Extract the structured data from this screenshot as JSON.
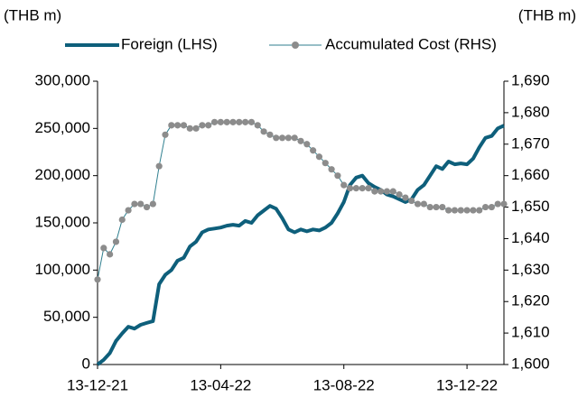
{
  "chart_data": {
    "type": "line",
    "y_label": "(THB m)",
    "y2_label": "(THB m)",
    "categories": [
      "13-12-21",
      null,
      null,
      null,
      null,
      null,
      null,
      null,
      null,
      null,
      null,
      null,
      null,
      null,
      null,
      null,
      null,
      null,
      null,
      null,
      "13-04-22",
      null,
      null,
      null,
      null,
      null,
      null,
      null,
      null,
      null,
      null,
      null,
      null,
      null,
      null,
      null,
      null,
      null,
      null,
      null,
      "13-08-22",
      null,
      null,
      null,
      null,
      null,
      null,
      null,
      null,
      null,
      null,
      null,
      null,
      null,
      null,
      null,
      null,
      null,
      null,
      null,
      "13-12-22",
      null,
      null,
      null,
      null,
      null,
      null
    ],
    "series": [
      {
        "name": "Foreign (LHS)",
        "color": "#0e5f7b",
        "axis": "y",
        "values": [
          0,
          5000,
          12000,
          25000,
          33000,
          40000,
          38000,
          42000,
          44000,
          46000,
          85000,
          95000,
          100000,
          110000,
          113000,
          125000,
          130000,
          140000,
          143000,
          144000,
          145000,
          147000,
          148000,
          147000,
          152000,
          150000,
          158000,
          163000,
          168000,
          165000,
          155000,
          143000,
          140000,
          143000,
          141000,
          143000,
          142000,
          145000,
          150000,
          160000,
          172000,
          190000,
          198000,
          200000,
          192000,
          188000,
          185000,
          180000,
          178000,
          175000,
          172000,
          175000,
          185000,
          190000,
          200000,
          210000,
          207000,
          215000,
          212000,
          213000,
          212000,
          218000,
          230000,
          240000,
          242000,
          250000,
          253000
        ]
      },
      {
        "name": "Accumulated Cost (RHS)",
        "color": "#8c8c8c",
        "axis": "y2",
        "values": [
          1627,
          1637,
          1635,
          1639,
          1646,
          1649,
          1651,
          1651,
          1650,
          1651,
          1663,
          1673,
          1676,
          1676,
          1676,
          1675,
          1675,
          1676,
          1676,
          1677,
          1677,
          1677,
          1677,
          1677,
          1677,
          1677,
          1676,
          1674,
          1673,
          1672,
          1672,
          1672,
          1672,
          1671,
          1670,
          1668,
          1666,
          1664,
          1662,
          1660,
          1657,
          1656,
          1656,
          1656,
          1656,
          1655,
          1655,
          1655,
          1655,
          1654,
          1653,
          1652,
          1651,
          1651,
          1650,
          1650,
          1650,
          1649,
          1649,
          1649,
          1649,
          1649,
          1649,
          1650,
          1650,
          1651,
          1651
        ]
      }
    ],
    "ylim": [
      0,
      300000
    ],
    "yticks": [
      0,
      {
        "value": 50000,
        "label": "50,000"
      },
      {
        "value": 100000,
        "label": "100,000"
      },
      {
        "value": 150000,
        "label": "150,000"
      },
      {
        "value": 200000,
        "label": "200,000"
      },
      {
        "value": 250000,
        "label": "250,000"
      },
      {
        "value": 300000,
        "label": "300,000"
      }
    ],
    "y2lim": [
      1600,
      1690
    ],
    "y2ticks": [
      {
        "value": 1600,
        "label": "1,600"
      },
      {
        "value": 1610,
        "label": "1,610"
      },
      {
        "value": 1620,
        "label": "1,620"
      },
      {
        "value": 1630,
        "label": "1,630"
      },
      {
        "value": 1640,
        "label": "1,640"
      },
      {
        "value": 1650,
        "label": "1,650"
      },
      {
        "value": 1660,
        "label": "1,660"
      },
      {
        "value": 1670,
        "label": "1,670"
      },
      {
        "value": 1680,
        "label": "1,680"
      },
      {
        "value": 1690,
        "label": "1,690"
      }
    ],
    "legend": "top"
  }
}
